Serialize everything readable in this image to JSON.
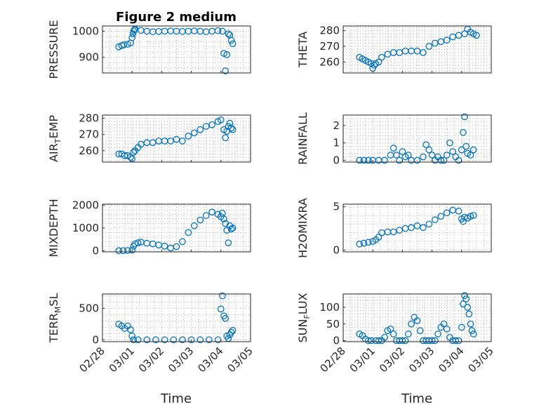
{
  "figure": {
    "title": "Figure 2 medium",
    "xlabel": "Time",
    "xticks": [
      "02/28",
      "03/01",
      "03/02",
      "03/03",
      "03/04",
      "03/05"
    ],
    "marker_color": "#0072bd"
  },
  "chart_data": [
    {
      "type": "scatter",
      "ylabel": "PRESSURE",
      "xlim": [
        0,
        5
      ],
      "ylim": [
        840,
        1020
      ],
      "yticks": [
        900,
        1000
      ],
      "x": [
        0.55,
        0.65,
        0.72,
        0.85,
        0.95,
        1.0,
        1.03,
        1.05,
        1.08,
        1.1,
        1.3,
        1.5,
        1.7,
        1.9,
        2.1,
        2.3,
        2.5,
        2.7,
        2.9,
        3.1,
        3.3,
        3.5,
        3.7,
        3.9,
        4.05,
        4.1,
        4.15,
        4.2,
        4.25,
        4.3,
        4.35,
        4.4
      ],
      "y": [
        940,
        945,
        948,
        950,
        955,
        975,
        990,
        1000,
        1005,
        1008,
        1003,
        1000,
        998,
        999,
        1000,
        1001,
        1000,
        999,
        1000,
        1001,
        1000,
        998,
        1000,
        1002,
        1000,
        915,
        848,
        910,
        990,
        985,
        965,
        952
      ]
    },
    {
      "type": "scatter",
      "ylabel": "THETA",
      "xlim": [
        0,
        5
      ],
      "ylim": [
        253,
        283
      ],
      "yticks": [
        260,
        270,
        280
      ],
      "x": [
        0.55,
        0.65,
        0.75,
        0.85,
        0.95,
        1.0,
        1.05,
        1.1,
        1.2,
        1.3,
        1.5,
        1.7,
        1.9,
        2.1,
        2.3,
        2.5,
        2.7,
        2.9,
        3.1,
        3.3,
        3.5,
        3.7,
        3.9,
        4.1,
        4.2,
        4.3,
        4.4,
        4.5
      ],
      "y": [
        263,
        262,
        261,
        260,
        259,
        256,
        258,
        259,
        260,
        263,
        265,
        266,
        266,
        267,
        267,
        267,
        266,
        270,
        272,
        273,
        274,
        276,
        277,
        278,
        281,
        279,
        278,
        277
      ]
    },
    {
      "type": "scatter",
      "ylabel": "AIR_TEMP",
      "xlim": [
        0,
        5
      ],
      "ylim": [
        253,
        282
      ],
      "yticks": [
        260,
        270,
        280
      ],
      "x": [
        0.55,
        0.65,
        0.75,
        0.85,
        0.95,
        1.0,
        1.05,
        1.1,
        1.2,
        1.3,
        1.5,
        1.7,
        1.9,
        2.1,
        2.3,
        2.5,
        2.7,
        2.9,
        3.1,
        3.3,
        3.5,
        3.7,
        3.9,
        4.0,
        4.1,
        4.15,
        4.2,
        4.25,
        4.3,
        4.35,
        4.4
      ],
      "y": [
        258,
        258,
        257,
        257,
        256,
        255,
        259,
        260,
        262,
        264,
        265,
        265,
        266,
        266,
        266,
        267,
        266,
        269,
        271,
        273,
        275,
        276,
        278,
        279,
        273,
        268,
        272,
        275,
        277,
        274,
        273
      ]
    },
    {
      "type": "scatter",
      "ylabel": "RAINFALL",
      "xlim": [
        0,
        5
      ],
      "ylim": [
        -0.1,
        2.6
      ],
      "yticks": [
        0,
        1,
        2
      ],
      "x": [
        0.55,
        0.7,
        0.85,
        1.0,
        1.2,
        1.4,
        1.6,
        1.7,
        1.8,
        1.9,
        2.0,
        2.1,
        2.2,
        2.3,
        2.5,
        2.7,
        2.8,
        2.9,
        3.0,
        3.1,
        3.2,
        3.3,
        3.4,
        3.5,
        3.6,
        3.7,
        3.8,
        3.9,
        4.0,
        4.05,
        4.1,
        4.15,
        4.2,
        4.3,
        4.4
      ],
      "y": [
        0,
        0,
        0,
        0,
        0,
        0,
        0.3,
        0.7,
        0.3,
        0,
        0.5,
        0.2,
        0.3,
        0,
        0,
        0.2,
        0.9,
        0.6,
        0.3,
        0,
        0.2,
        0,
        0,
        0.3,
        1.0,
        0.5,
        0.2,
        0,
        0.6,
        1.6,
        2.5,
        0.8,
        0.4,
        0.3,
        0.6
      ]
    },
    {
      "type": "scatter",
      "ylabel": "MIXDEPTH",
      "xlim": [
        0,
        5
      ],
      "ylim": [
        -50,
        2050
      ],
      "yticks": [
        0,
        1000,
        2000
      ],
      "x": [
        0.55,
        0.7,
        0.85,
        1.0,
        1.05,
        1.1,
        1.2,
        1.3,
        1.5,
        1.7,
        1.9,
        2.1,
        2.3,
        2.5,
        2.7,
        2.9,
        3.1,
        3.3,
        3.5,
        3.7,
        3.9,
        4.0,
        4.05,
        4.1,
        4.15,
        4.2,
        4.25,
        4.3,
        4.35,
        4.4
      ],
      "y": [
        0,
        0,
        10,
        30,
        200,
        300,
        350,
        380,
        330,
        300,
        250,
        200,
        120,
        180,
        400,
        800,
        1100,
        1350,
        1550,
        1700,
        1600,
        1500,
        1650,
        1400,
        1200,
        900,
        350,
        1100,
        950,
        1000
      ]
    },
    {
      "type": "scatter",
      "ylabel": "H2OMIXRA",
      "xlim": [
        0,
        5
      ],
      "ylim": [
        -0.2,
        5.3
      ],
      "yticks": [
        0,
        5
      ],
      "x": [
        0.55,
        0.7,
        0.85,
        1.0,
        1.1,
        1.2,
        1.3,
        1.5,
        1.7,
        1.9,
        2.1,
        2.3,
        2.5,
        2.7,
        2.9,
        3.1,
        3.3,
        3.5,
        3.7,
        3.9,
        4.0,
        4.05,
        4.1,
        4.2,
        4.3,
        4.4
      ],
      "y": [
        0.7,
        0.8,
        0.9,
        1.0,
        1.2,
        1.5,
        2.0,
        2.1,
        2.1,
        2.3,
        2.5,
        2.6,
        2.8,
        2.6,
        3.0,
        3.5,
        3.9,
        4.3,
        4.6,
        4.5,
        3.6,
        3.3,
        3.8,
        3.7,
        3.9,
        4.0
      ]
    },
    {
      "type": "scatter",
      "ylabel": "TERR_MSL",
      "xlim": [
        0,
        5
      ],
      "ylim": [
        -30,
        730
      ],
      "yticks": [
        0,
        500
      ],
      "x": [
        0.55,
        0.65,
        0.75,
        0.85,
        0.95,
        1.0,
        1.05,
        1.2,
        1.5,
        1.8,
        2.1,
        2.4,
        2.7,
        3.0,
        3.3,
        3.6,
        3.9,
        4.0,
        4.05,
        4.1,
        4.15,
        4.2,
        4.25,
        4.3,
        4.35,
        4.4
      ],
      "y": [
        250,
        220,
        180,
        220,
        160,
        60,
        0,
        0,
        0,
        0,
        0,
        0,
        0,
        0,
        0,
        0,
        0,
        490,
        700,
        380,
        340,
        60,
        20,
        80,
        120,
        150
      ]
    },
    {
      "type": "scatter",
      "ylabel": "SUN_FLUX",
      "xlim": [
        0,
        5
      ],
      "ylim": [
        -3,
        140
      ],
      "yticks": [
        0,
        50,
        100
      ],
      "x": [
        0.55,
        0.65,
        0.75,
        0.85,
        0.95,
        1.1,
        1.2,
        1.3,
        1.4,
        1.5,
        1.6,
        1.7,
        1.8,
        1.9,
        2.0,
        2.1,
        2.2,
        2.3,
        2.4,
        2.5,
        2.6,
        2.7,
        2.8,
        2.9,
        3.0,
        3.1,
        3.2,
        3.3,
        3.4,
        3.5,
        3.6,
        3.7,
        3.8,
        3.9,
        4.0,
        4.05,
        4.1,
        4.15,
        4.2,
        4.25,
        4.3,
        4.35,
        4.4
      ],
      "y": [
        20,
        15,
        5,
        0,
        0,
        0,
        0,
        0,
        10,
        30,
        35,
        20,
        0,
        0,
        0,
        0,
        20,
        50,
        70,
        60,
        30,
        0,
        0,
        0,
        0,
        0,
        20,
        40,
        50,
        35,
        10,
        0,
        0,
        0,
        40,
        110,
        135,
        125,
        100,
        80,
        50,
        30,
        20
      ]
    }
  ]
}
